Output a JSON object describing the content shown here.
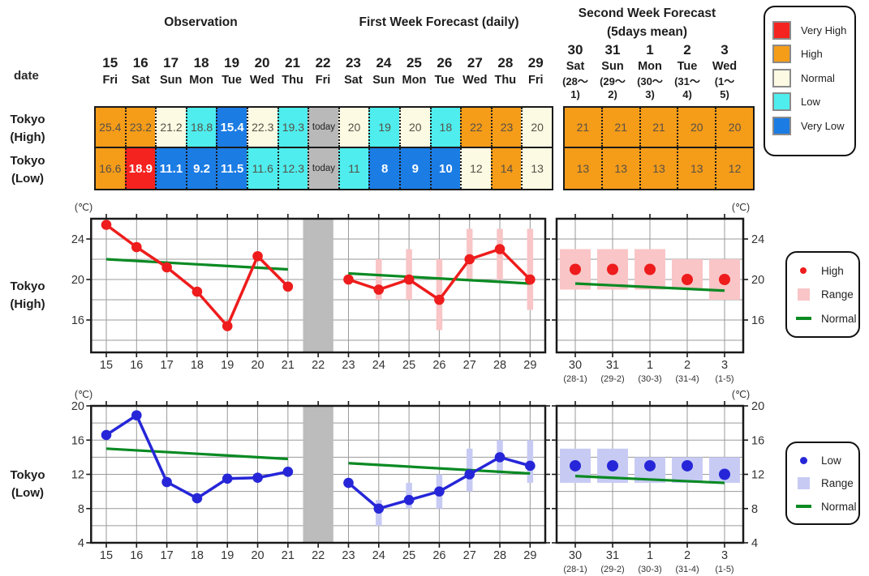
{
  "headers": {
    "observation": "Observation",
    "first_week": "First Week Forecast (daily)",
    "second_week_line1": "Second Week Forecast",
    "second_week_line2": "(5days mean)",
    "date_label": "date"
  },
  "labels": {
    "tokyo": "Tokyo",
    "high": "(High)",
    "low": "(Low)"
  },
  "main_days": [
    {
      "num": "15",
      "wd": "Fri"
    },
    {
      "num": "16",
      "wd": "Sat"
    },
    {
      "num": "17",
      "wd": "Sun"
    },
    {
      "num": "18",
      "wd": "Mon"
    },
    {
      "num": "19",
      "wd": "Tue"
    },
    {
      "num": "20",
      "wd": "Wed"
    },
    {
      "num": "21",
      "wd": "Thu"
    },
    {
      "num": "22",
      "wd": "Fri"
    },
    {
      "num": "23",
      "wd": "Sat"
    },
    {
      "num": "24",
      "wd": "Sun"
    },
    {
      "num": "25",
      "wd": "Mon"
    },
    {
      "num": "26",
      "wd": "Tue"
    },
    {
      "num": "27",
      "wd": "Wed"
    },
    {
      "num": "28",
      "wd": "Thu"
    },
    {
      "num": "29",
      "wd": "Fri"
    }
  ],
  "second_days": [
    {
      "num": "30",
      "wd": "Sat",
      "p1": "(28〜",
      "p2": "1)"
    },
    {
      "num": "31",
      "wd": "Sun",
      "p1": "(29〜",
      "p2": "2)"
    },
    {
      "num": "1",
      "wd": "Mon",
      "p1": "(30〜",
      "p2": "3)"
    },
    {
      "num": "2",
      "wd": "Tue",
      "p1": "(31〜",
      "p2": "4)"
    },
    {
      "num": "3",
      "wd": "Wed",
      "p1": "(1〜",
      "p2": "5)"
    }
  ],
  "table": {
    "high_cells": [
      {
        "v": "25.4",
        "c": "high"
      },
      {
        "v": "23.2",
        "c": "high"
      },
      {
        "v": "21.2",
        "c": "normal"
      },
      {
        "v": "18.8",
        "c": "low"
      },
      {
        "v": "15.4",
        "c": "very_low"
      },
      {
        "v": "22.3",
        "c": "normal"
      },
      {
        "v": "19.3",
        "c": "low"
      },
      {
        "v": "today",
        "c": "today"
      },
      {
        "v": "20",
        "c": "normal"
      },
      {
        "v": "19",
        "c": "low"
      },
      {
        "v": "20",
        "c": "normal"
      },
      {
        "v": "18",
        "c": "low"
      },
      {
        "v": "22",
        "c": "high"
      },
      {
        "v": "23",
        "c": "high"
      },
      {
        "v": "20",
        "c": "normal"
      }
    ],
    "low_cells": [
      {
        "v": "16.6",
        "c": "high"
      },
      {
        "v": "18.9",
        "c": "very_high"
      },
      {
        "v": "11.1",
        "c": "very_low"
      },
      {
        "v": "9.2",
        "c": "very_low"
      },
      {
        "v": "11.5",
        "c": "very_low"
      },
      {
        "v": "11.6",
        "c": "low"
      },
      {
        "v": "12.3",
        "c": "low"
      },
      {
        "v": "today",
        "c": "today"
      },
      {
        "v": "11",
        "c": "low"
      },
      {
        "v": "8",
        "c": "very_low"
      },
      {
        "v": "9",
        "c": "very_low"
      },
      {
        "v": "10",
        "c": "very_low"
      },
      {
        "v": "12",
        "c": "normal"
      },
      {
        "v": "14",
        "c": "high"
      },
      {
        "v": "13",
        "c": "normal"
      }
    ],
    "second_high": [
      {
        "v": "21",
        "c": "high"
      },
      {
        "v": "21",
        "c": "high"
      },
      {
        "v": "21",
        "c": "high"
      },
      {
        "v": "20",
        "c": "high"
      },
      {
        "v": "20",
        "c": "high"
      }
    ],
    "second_low": [
      {
        "v": "13",
        "c": "high"
      },
      {
        "v": "13",
        "c": "high"
      },
      {
        "v": "13",
        "c": "high"
      },
      {
        "v": "13",
        "c": "high"
      },
      {
        "v": "12",
        "c": "high"
      }
    ]
  },
  "category_legend": [
    {
      "label": "Very High",
      "key": "very_high"
    },
    {
      "label": "High",
      "key": "high"
    },
    {
      "label": "Normal",
      "key": "normal"
    },
    {
      "label": "Low",
      "key": "low"
    },
    {
      "label": "Very Low",
      "key": "very_low"
    }
  ],
  "chart_legends": {
    "high": {
      "items": [
        {
          "label": "High",
          "swatch": "dot"
        },
        {
          "label": "Range",
          "swatch": "box"
        },
        {
          "label": "Normal",
          "swatch": "line"
        }
      ]
    },
    "low": {
      "items": [
        {
          "label": "Low",
          "swatch": "dot"
        },
        {
          "label": "Range",
          "swatch": "box"
        },
        {
          "label": "Normal",
          "swatch": "line"
        }
      ]
    }
  },
  "colors": {
    "very_high": "#F5231F",
    "high": "#F59C19",
    "normal": "#FCFAE3",
    "low": "#4FEDED",
    "very_low": "#1B7CE4",
    "today": "#B9B9B9",
    "band": "#BCBCBC",
    "grid": "#9A9A9A",
    "frame": "#1A1A1A",
    "green": "#0A8A23",
    "high_series": "#EE1C1C",
    "high_range": "#F9C5C7",
    "low_series": "#2626D8",
    "low_range": "#C7CBF4"
  },
  "chart_data": [
    {
      "type": "line",
      "title": "Tokyo (High)",
      "unit": "(℃)",
      "ylim": [
        12.8,
        26
      ],
      "yticks_grid": [
        14,
        16,
        18,
        20,
        22,
        24
      ],
      "yticks_labeled": [
        16,
        20,
        24
      ],
      "x_days": [
        15,
        16,
        17,
        18,
        19,
        20,
        21,
        22,
        23,
        24,
        25,
        26,
        27,
        28,
        29
      ],
      "today": 22,
      "observed": {
        "x": [
          15,
          16,
          17,
          18,
          19,
          20,
          21
        ],
        "y": [
          25.4,
          23.2,
          21.2,
          18.8,
          15.4,
          22.3,
          19.3
        ]
      },
      "forecast": {
        "x": [
          23,
          24,
          25,
          26,
          27,
          28,
          29
        ],
        "y": [
          20,
          19,
          20,
          18,
          22,
          23,
          20
        ]
      },
      "forecast_range": [
        {
          "x": 24,
          "lo": 18,
          "hi": 22
        },
        {
          "x": 25,
          "lo": 18,
          "hi": 23
        },
        {
          "x": 26,
          "lo": 15,
          "hi": 22
        },
        {
          "x": 27,
          "lo": 20,
          "hi": 25
        },
        {
          "x": 28,
          "lo": 20,
          "hi": 25
        },
        {
          "x": 29,
          "lo": 17,
          "hi": 25
        }
      ],
      "normal_observed": {
        "x": [
          15,
          21
        ],
        "y": [
          22.0,
          21.0
        ]
      },
      "normal_forecast": {
        "x": [
          23,
          29
        ],
        "y": [
          20.6,
          19.6
        ]
      },
      "second_week": {
        "labels": [
          "30",
          "31",
          "1",
          "2",
          "3"
        ],
        "sublabels": [
          "(28-1)",
          "(29-2)",
          "(30-3)",
          "(31-4)",
          "(1-5)"
        ],
        "values": [
          21,
          21,
          21,
          20,
          20
        ],
        "ranges": [
          [
            19,
            23
          ],
          [
            19,
            23
          ],
          [
            19,
            23
          ],
          [
            19,
            22
          ],
          [
            18,
            22
          ]
        ],
        "normal": [
          19.6,
          18.9
        ]
      },
      "series_color": "#EE1C1C",
      "range_color": "#F9C5C7",
      "normal_color": "#0A8A23"
    },
    {
      "type": "line",
      "title": "Tokyo (Low)",
      "unit": "(℃)",
      "ylim": [
        4,
        20
      ],
      "yticks_grid": [
        6,
        8,
        10,
        12,
        14,
        16,
        18
      ],
      "yticks_labeled": [
        4,
        8,
        12,
        16,
        20
      ],
      "x_days": [
        15,
        16,
        17,
        18,
        19,
        20,
        21,
        22,
        23,
        24,
        25,
        26,
        27,
        28,
        29
      ],
      "today": 22,
      "observed": {
        "x": [
          15,
          16,
          17,
          18,
          19,
          20,
          21
        ],
        "y": [
          16.6,
          18.9,
          11.1,
          9.2,
          11.5,
          11.6,
          12.3
        ]
      },
      "forecast": {
        "x": [
          23,
          24,
          25,
          26,
          27,
          28,
          29
        ],
        "y": [
          11,
          8,
          9,
          10,
          12,
          14,
          13
        ]
      },
      "forecast_range": [
        {
          "x": 24,
          "lo": 6,
          "hi": 9
        },
        {
          "x": 25,
          "lo": 8,
          "hi": 11
        },
        {
          "x": 26,
          "lo": 8,
          "hi": 12
        },
        {
          "x": 27,
          "lo": 10,
          "hi": 15
        },
        {
          "x": 28,
          "lo": 12,
          "hi": 16
        },
        {
          "x": 29,
          "lo": 11,
          "hi": 16
        }
      ],
      "normal_observed": {
        "x": [
          15,
          21
        ],
        "y": [
          15.0,
          13.8
        ]
      },
      "normal_forecast": {
        "x": [
          23,
          29
        ],
        "y": [
          13.3,
          12.1
        ]
      },
      "second_week": {
        "labels": [
          "30",
          "31",
          "1",
          "2",
          "3"
        ],
        "sublabels": [
          "(28-1)",
          "(29-2)",
          "(30-3)",
          "(31-4)",
          "(1-5)"
        ],
        "values": [
          13,
          13,
          13,
          13,
          12
        ],
        "ranges": [
          [
            11,
            15
          ],
          [
            11,
            15
          ],
          [
            11,
            14
          ],
          [
            11,
            14
          ],
          [
            11,
            14
          ]
        ],
        "normal": [
          11.8,
          11.0
        ]
      },
      "series_color": "#2626D8",
      "range_color": "#C7CBF4",
      "normal_color": "#0A8A23"
    }
  ]
}
